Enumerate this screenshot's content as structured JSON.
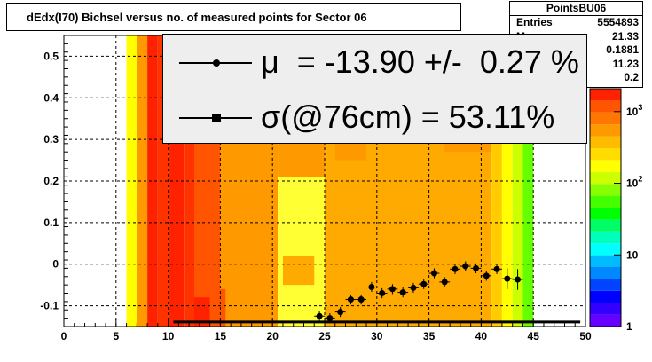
{
  "title": "dEdx(I70) Bichsel versus no. of measured points for Sector 06",
  "stats": {
    "name": "PointsBU06",
    "rows": [
      {
        "key": "Entries",
        "value": "5554893"
      },
      {
        "key": "M",
        "value": "21.33"
      },
      {
        "key": "",
        "value": "0.1881"
      },
      {
        "key": "",
        "value": "11.23"
      },
      {
        "key": "",
        "value": "0.2"
      }
    ]
  },
  "legend": {
    "mu": "μ  = -13.90 +/-  0.27 %",
    "sigma": "σ(@76cm) = 53.11%"
  },
  "colors": {
    "yellow": "#ffff00",
    "lightyellow": "#ffff33",
    "green": "#66ff00",
    "red": "#ff2200",
    "redorange": "#ff3300",
    "orange": "#ff9900",
    "orangeb": "#ffaa00",
    "gridline": "#000000"
  },
  "chart_data": {
    "type": "heatmap",
    "title": "dEdx(I70) Bichsel versus no. of measured points for Sector 06",
    "xlabel": "",
    "ylabel": "",
    "xlim": [
      0,
      50
    ],
    "ylim": [
      -0.15,
      0.55
    ],
    "xticks": [
      "0",
      "5",
      "10",
      "15",
      "20",
      "25",
      "30",
      "35",
      "40",
      "45",
      "50"
    ],
    "yticks": [
      "-0.1",
      "0",
      "0.1",
      "0.2",
      "0.3",
      "0.4",
      "0.5"
    ],
    "colorbar": {
      "scale": "log",
      "ticks": [
        "1",
        "10",
        "10^2",
        "10^3"
      ]
    },
    "grid": true,
    "profile": {
      "x": [
        24.5,
        25.5,
        26.5,
        27.5,
        28.5,
        29.5,
        30.5,
        31.5,
        32.5,
        33.5,
        34.5,
        35.5,
        36.5,
        37.5,
        38.5,
        39.5,
        40.5,
        41.5,
        42.5,
        43.5
      ],
      "y": [
        -0.125,
        -0.13,
        -0.115,
        -0.085,
        -0.085,
        -0.055,
        -0.07,
        -0.06,
        -0.068,
        -0.057,
        -0.048,
        -0.022,
        -0.043,
        -0.012,
        -0.005,
        -0.01,
        -0.028,
        -0.012,
        -0.035,
        -0.037
      ],
      "err": [
        0.012,
        0.012,
        0.012,
        0.012,
        0.012,
        0.012,
        0.012,
        0.012,
        0.012,
        0.012,
        0.012,
        0.012,
        0.012,
        0.012,
        0.012,
        0.012,
        0.012,
        0.012,
        0.025,
        0.025
      ]
    },
    "fit_line": {
      "x": [
        10.5,
        49.5
      ],
      "y": [
        -0.139,
        -0.139
      ]
    }
  }
}
